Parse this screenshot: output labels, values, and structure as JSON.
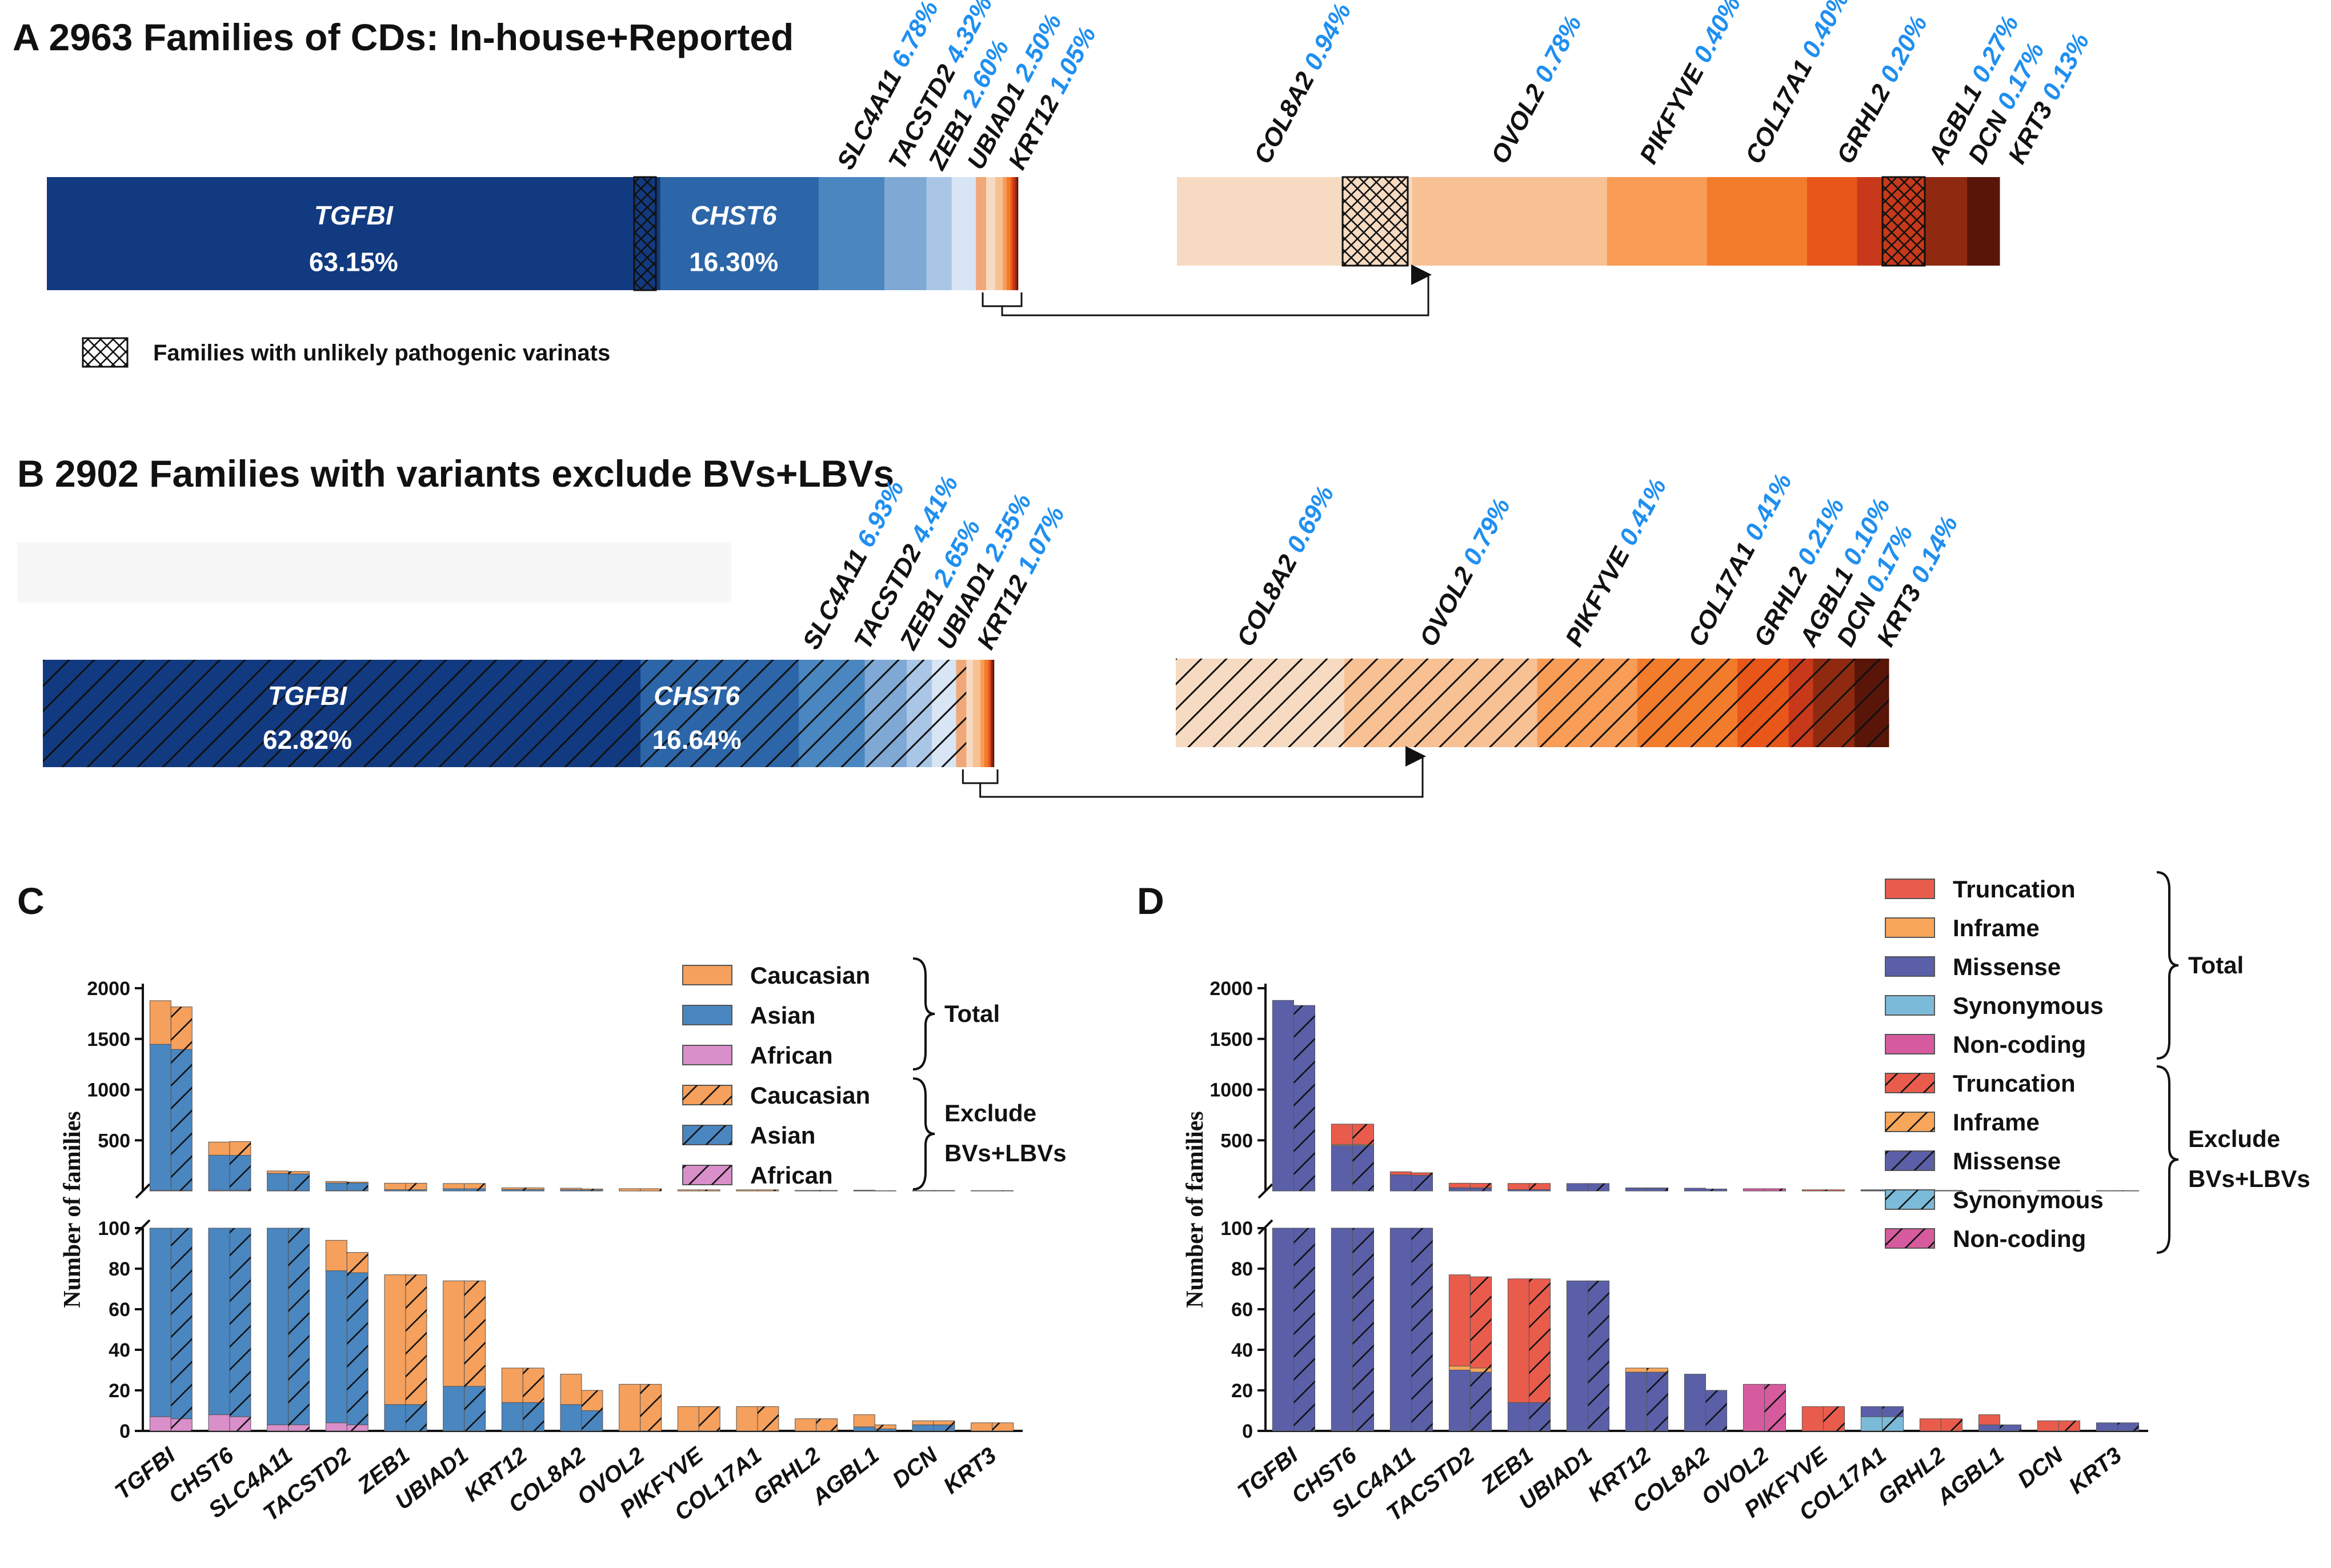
{
  "colors": {
    "blue": [
      "#123a80",
      "#2c66a8",
      "#4a87c1",
      "#7fa9d4",
      "#aac6e6",
      "#d7e5f4"
    ],
    "orange": [
      "#f6dbc2",
      "#f8c194",
      "#f89c56",
      "#f37b2c",
      "#e8561a",
      "#c7391a",
      "#8f2a10",
      "#5a1509"
    ],
    "c_cauc": "#f5a05c",
    "c_asian": "#4a86c0",
    "c_african": "#d98fc9",
    "d_trunc": "#e95c4c",
    "d_inframe": "#f7a65a",
    "d_missense": "#5a5fa8",
    "d_syn": "#7bbad8",
    "d_noncoding": "#d65b9e",
    "pct": "#1f8ff0"
  },
  "panel_a": {
    "title": "A 2963 Families of CDs: In-house+Reported",
    "note": "Families with unlikely pathogenic varinats",
    "genes": [
      "TGFBI",
      "CHST6",
      "SLC4A11",
      "TACSTD2",
      "ZEB1",
      "UBIAD1",
      "KRT12",
      "COL8A2",
      "OVOL2",
      "PIKFYVE",
      "COL17A1",
      "GRHL2",
      "AGBL1",
      "DCN",
      "KRT3"
    ],
    "percent_labels": [
      "63.15%",
      "16.30%",
      "6.78%",
      "4.32%",
      "2.60%",
      "2.50%",
      "1.05%",
      "0.94%",
      "0.78%",
      "0.40%",
      "0.40%",
      "0.20%",
      "0.27%",
      "0.17%",
      "0.13%"
    ]
  },
  "panel_b": {
    "title": "B 2902 Families with variants exclude BVs+LBVs",
    "genes": [
      "TGFBI",
      "CHST6",
      "SLC4A11",
      "TACSTD2",
      "ZEB1",
      "UBIAD1",
      "KRT12",
      "COL8A2",
      "OVOL2",
      "PIKFYVE",
      "COL17A1",
      "GRHL2",
      "AGBL1",
      "DCN",
      "KRT3"
    ],
    "percent_labels": [
      "62.82%",
      "16.64%",
      "6.93%",
      "4.41%",
      "2.65%",
      "2.55%",
      "1.07%",
      "0.69%",
      "0.79%",
      "0.41%",
      "0.41%",
      "0.21%",
      "0.10%",
      "0.17%",
      "0.14%"
    ]
  },
  "panel_c": {
    "label": "C",
    "ylabel": "Number of families",
    "legend_total": "Total",
    "legend_exclude_1": "Exclude",
    "legend_exclude_2": "BVs+LBVs",
    "legend_items": [
      "Caucasian",
      "Asian",
      "African",
      "Caucasian",
      "Asian",
      "African"
    ]
  },
  "panel_d": {
    "label": "D",
    "ylabel": "Number of families",
    "legend_total": "Total",
    "legend_exclude_1": "Exclude",
    "legend_exclude_2": "BVs+LBVs",
    "legend_items": [
      "Truncation",
      "Inframe",
      "Missense",
      "Synonymous",
      "Non-coding",
      "Truncation",
      "Inframe",
      "Missense",
      "Synonymous",
      "Non-coding"
    ]
  },
  "chart_data": [
    {
      "type": "bar",
      "title": "A 2963 Families of CDs: In-house+Reported",
      "orientation": "horizontal-stacked",
      "categories": [
        "TGFBI",
        "CHST6",
        "SLC4A11",
        "TACSTD2",
        "ZEB1",
        "UBIAD1",
        "KRT12",
        "COL8A2",
        "OVOL2",
        "PIKFYVE",
        "COL17A1",
        "GRHL2",
        "AGBL1",
        "DCN",
        "KRT3"
      ],
      "values": [
        63.15,
        16.3,
        6.78,
        4.32,
        2.6,
        2.5,
        1.05,
        0.94,
        0.78,
        0.4,
        0.4,
        0.2,
        0.27,
        0.17,
        0.13
      ]
    },
    {
      "type": "bar",
      "title": "B 2902 Families with variants exclude BVs+LBVs",
      "orientation": "horizontal-stacked",
      "categories": [
        "TGFBI",
        "CHST6",
        "SLC4A11",
        "TACSTD2",
        "ZEB1",
        "UBIAD1",
        "KRT12",
        "COL8A2",
        "OVOL2",
        "PIKFYVE",
        "COL17A1",
        "GRHL2",
        "AGBL1",
        "DCN",
        "KRT3"
      ],
      "values": [
        62.82,
        16.64,
        6.93,
        4.41,
        2.65,
        2.55,
        1.07,
        0.69,
        0.79,
        0.41,
        0.41,
        0.21,
        0.1,
        0.17,
        0.14
      ]
    },
    {
      "type": "bar",
      "title": "C",
      "ylabel": "Number of families",
      "stacked": true,
      "broken_axis": true,
      "y_ticks_upper": [
        "500",
        "1000",
        "1500",
        "2000"
      ],
      "y_ticks_lower": [
        "0",
        "20",
        "40",
        "60",
        "80",
        "100"
      ],
      "categories": [
        "TGFBI",
        "CHST6",
        "SLC4A11",
        "TACSTD2",
        "ZEB1",
        "UBIAD1",
        "KRT12",
        "COL8A2",
        "OVOL2",
        "PIKFYVE",
        "COL17A1",
        "GRHL2",
        "AGBL1",
        "DCN",
        "KRT3"
      ],
      "series": [
        {
          "name": "Total African",
          "values": [
            7,
            8,
            3,
            4,
            0,
            0,
            0,
            0,
            0,
            0,
            0,
            0,
            0,
            0,
            0
          ]
        },
        {
          "name": "Total Asian",
          "values": [
            1440,
            345,
            170,
            75,
            13,
            22,
            14,
            13,
            0,
            0,
            0,
            0,
            2,
            3,
            0
          ]
        },
        {
          "name": "Total Caucasian",
          "values": [
            430,
            130,
            25,
            15,
            64,
            52,
            17,
            15,
            23,
            12,
            12,
            6,
            6,
            2,
            4
          ]
        },
        {
          "name": "Exclude African",
          "values": [
            6,
            7,
            3,
            3,
            0,
            0,
            0,
            0,
            0,
            0,
            0,
            0,
            0,
            0,
            0
          ]
        },
        {
          "name": "Exclude Asian",
          "values": [
            1390,
            345,
            165,
            75,
            13,
            22,
            14,
            10,
            0,
            0,
            0,
            0,
            1,
            3,
            0
          ]
        },
        {
          "name": "Exclude Caucasian",
          "values": [
            420,
            135,
            25,
            10,
            64,
            52,
            17,
            10,
            23,
            12,
            12,
            6,
            2,
            2,
            4
          ]
        }
      ]
    },
    {
      "type": "bar",
      "title": "D",
      "ylabel": "Number of families",
      "stacked": true,
      "broken_axis": true,
      "y_ticks_upper": [
        "500",
        "1000",
        "1500",
        "2000"
      ],
      "y_ticks_lower": [
        "0",
        "20",
        "40",
        "60",
        "80",
        "100"
      ],
      "categories": [
        "TGFBI",
        "CHST6",
        "SLC4A11",
        "TACSTD2",
        "ZEB1",
        "UBIAD1",
        "KRT12",
        "COL8A2",
        "OVOL2",
        "PIKFYVE",
        "COL17A1",
        "GRHL2",
        "AGBL1",
        "DCN",
        "KRT3"
      ],
      "series": [
        {
          "name": "Total Synonymous",
          "values": [
            0,
            0,
            0,
            0,
            0,
            0,
            0,
            0,
            0,
            0,
            7,
            0,
            0,
            0,
            0
          ]
        },
        {
          "name": "Total Missense",
          "values": [
            1880,
            450,
            160,
            30,
            14,
            74,
            29,
            28,
            0,
            0,
            5,
            0,
            3,
            0,
            4
          ]
        },
        {
          "name": "Total Inframe",
          "values": [
            0,
            10,
            0,
            2,
            0,
            0,
            2,
            0,
            0,
            0,
            0,
            0,
            0,
            0,
            0
          ]
        },
        {
          "name": "Total Truncation",
          "values": [
            0,
            200,
            30,
            45,
            61,
            0,
            0,
            0,
            0,
            12,
            0,
            6,
            5,
            5,
            0
          ]
        },
        {
          "name": "Total Non-coding",
          "values": [
            0,
            0,
            0,
            0,
            0,
            0,
            0,
            0,
            23,
            0,
            0,
            0,
            0,
            0,
            0
          ]
        },
        {
          "name": "Exclude Synonymous",
          "values": [
            0,
            0,
            0,
            0,
            0,
            0,
            0,
            0,
            0,
            0,
            7,
            0,
            0,
            0,
            0
          ]
        },
        {
          "name": "Exclude Missense",
          "values": [
            1830,
            450,
            155,
            29,
            14,
            74,
            29,
            20,
            0,
            0,
            5,
            0,
            3,
            0,
            4
          ]
        },
        {
          "name": "Exclude Inframe",
          "values": [
            0,
            10,
            0,
            2,
            0,
            0,
            2,
            0,
            0,
            0,
            0,
            0,
            0,
            0,
            0
          ]
        },
        {
          "name": "Exclude Truncation",
          "values": [
            0,
            200,
            25,
            45,
            61,
            0,
            0,
            0,
            0,
            12,
            0,
            6,
            0,
            5,
            0
          ]
        },
        {
          "name": "Exclude Non-coding",
          "values": [
            0,
            0,
            0,
            0,
            0,
            0,
            0,
            0,
            23,
            0,
            0,
            0,
            0,
            0,
            0
          ]
        }
      ]
    }
  ]
}
